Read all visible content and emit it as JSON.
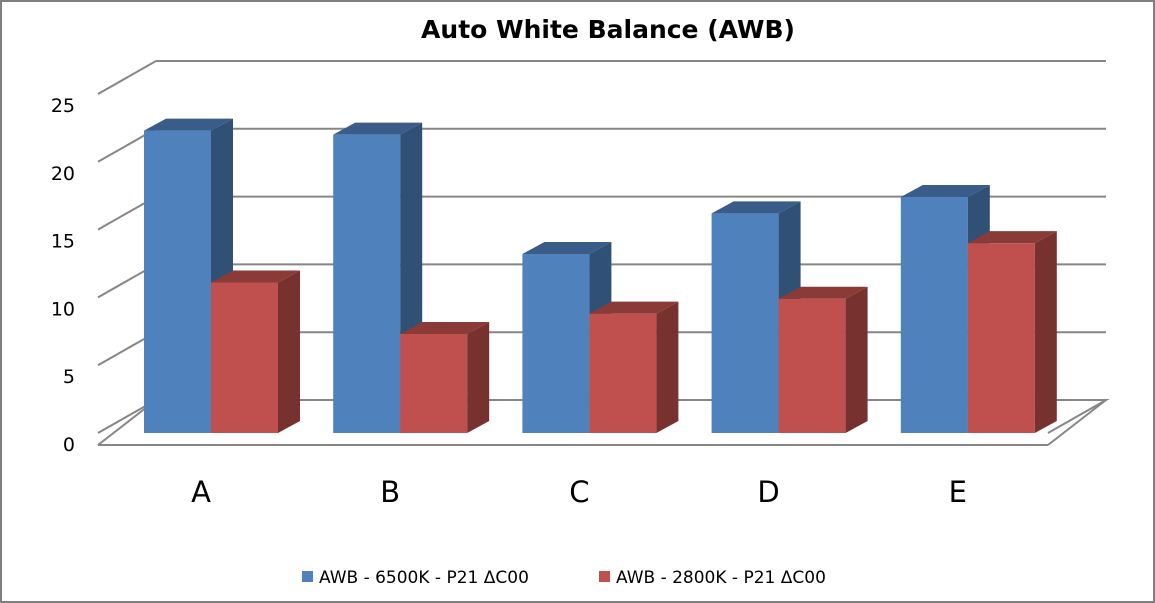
{
  "chart_data": {
    "type": "bar",
    "title": "Auto White Balance (AWB)",
    "xlabel": "",
    "ylabel": "",
    "categories": [
      "A",
      "B",
      "C",
      "D",
      "E"
    ],
    "series": [
      {
        "name": "AWB - 6500K - P21 ΔC00",
        "color": "#4f81bd",
        "values": [
          22.3,
          22.0,
          13.2,
          16.2,
          17.4
        ]
      },
      {
        "name": "AWB - 2800K - P21 ΔC00",
        "color": "#c0504d",
        "values": [
          11.1,
          7.3,
          8.8,
          9.9,
          14.0
        ]
      }
    ],
    "ylim": [
      0,
      25
    ],
    "yticks": [
      "0",
      "5",
      "10",
      "15",
      "20",
      "25"
    ],
    "grid": true,
    "legend_position": "bottom",
    "style": "3d-clustered-column"
  }
}
